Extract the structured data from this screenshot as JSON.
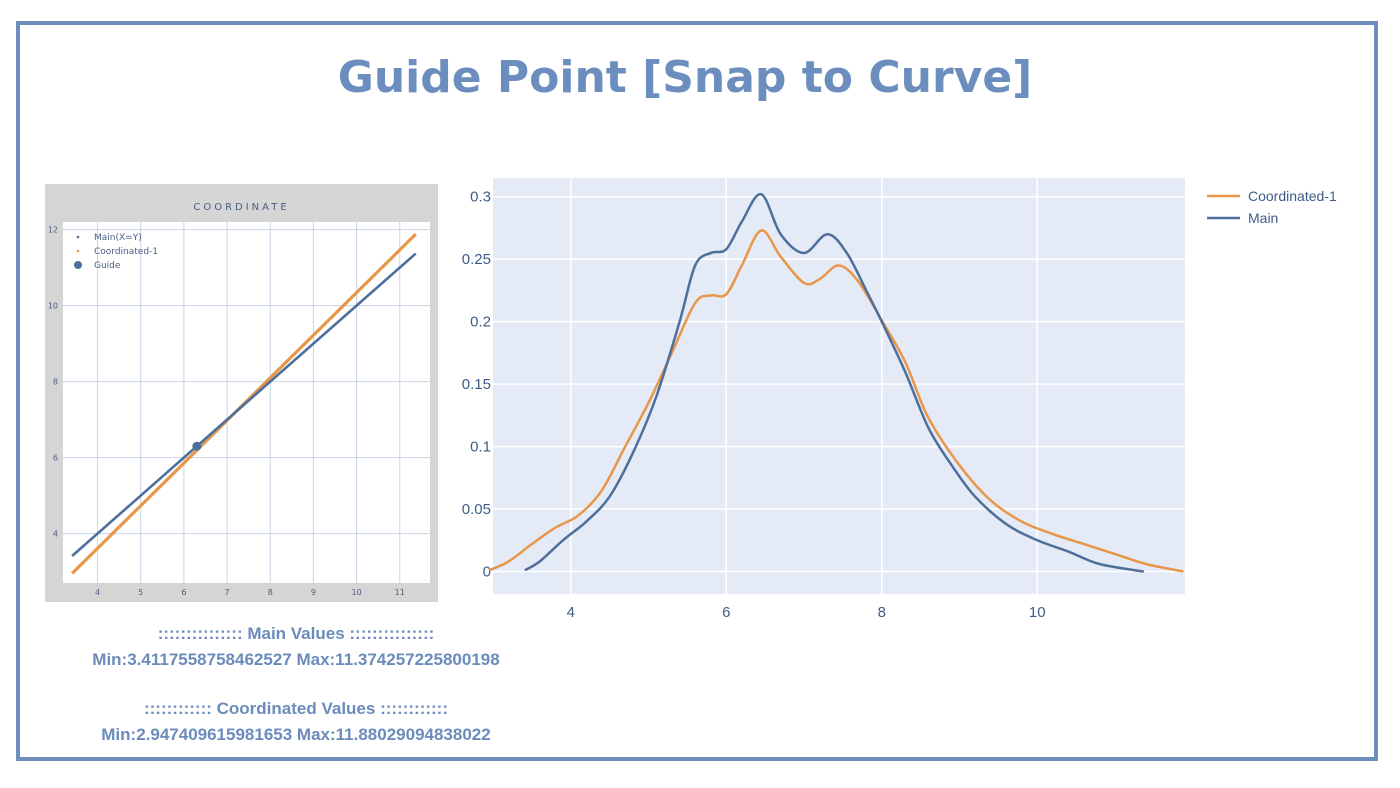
{
  "title": "Guide Point [Snap to Curve]",
  "colors": {
    "frame": "#6e8fbd",
    "title": "#6c8ebe",
    "main": "#4e6f9c",
    "coordinated": "#e8964a",
    "plot_bg": "#e5ebf6",
    "stats_text": "#6b8cbb"
  },
  "stats": {
    "main_header": "::::::::::::::: Main Values :::::::::::::::",
    "main_line": "Min:3.4117558758462527   Max:11.374257225800198",
    "coord_header": ":::::::::::: Coordinated Values ::::::::::::",
    "coord_line": "Min:2.947409615981653   Max:11.88029094838022"
  },
  "chart_data": [
    {
      "type": "line",
      "title": "COORDINATE",
      "xlim": [
        3.2,
        11.7
      ],
      "ylim": [
        2.7,
        12.2
      ],
      "x_ticks": [
        "4",
        "5",
        "6",
        "7",
        "8",
        "9",
        "10",
        "11"
      ],
      "y_ticks": [
        "4",
        "6",
        "8",
        "10",
        "12"
      ],
      "legend": "top-left",
      "grid": true,
      "series": [
        {
          "name": "Main(X=Y)",
          "x": [
            3.41,
            11.37
          ],
          "y": [
            3.41,
            11.37
          ]
        },
        {
          "name": "Coordinated-1",
          "x": [
            3.41,
            11.37
          ],
          "y": [
            2.95,
            11.88
          ]
        },
        {
          "name": "Guide",
          "x": [
            6.3
          ],
          "y": [
            6.3
          ]
        }
      ]
    },
    {
      "type": "line",
      "xlim": [
        3.0,
        11.9
      ],
      "ylim": [
        -0.018,
        0.315
      ],
      "x_ticks": [
        "4",
        "6",
        "8",
        "10"
      ],
      "y_ticks": [
        "0",
        "0.05",
        "0.1",
        "0.15",
        "0.2",
        "0.25",
        "0.3"
      ],
      "y_tick_values": [
        0,
        0.05,
        0.1,
        0.15,
        0.2,
        0.25,
        0.3
      ],
      "x_tick_values": [
        4,
        6,
        8,
        10
      ],
      "legend": "top-right",
      "grid": true,
      "series": [
        {
          "name": "Coordinated-1",
          "x": [
            2.95,
            3.2,
            3.5,
            3.8,
            4.1,
            4.4,
            4.7,
            5.0,
            5.3,
            5.6,
            5.8,
            6.0,
            6.2,
            6.45,
            6.7,
            7.0,
            7.2,
            7.45,
            7.7,
            8.0,
            8.3,
            8.6,
            9.0,
            9.4,
            9.8,
            10.2,
            10.6,
            11.0,
            11.4,
            11.88
          ],
          "y": [
            0.001,
            0.008,
            0.022,
            0.035,
            0.045,
            0.065,
            0.1,
            0.135,
            0.175,
            0.215,
            0.221,
            0.222,
            0.245,
            0.273,
            0.252,
            0.231,
            0.234,
            0.245,
            0.232,
            0.201,
            0.168,
            0.123,
            0.085,
            0.057,
            0.04,
            0.03,
            0.022,
            0.014,
            0.006,
            0.0
          ]
        },
        {
          "name": "Main",
          "x": [
            3.41,
            3.6,
            3.9,
            4.2,
            4.5,
            4.8,
            5.1,
            5.4,
            5.6,
            5.8,
            6.0,
            6.2,
            6.45,
            6.7,
            7.0,
            7.3,
            7.55,
            7.8,
            8.0,
            8.3,
            8.6,
            8.9,
            9.2,
            9.6,
            10.0,
            10.4,
            10.8,
            11.37
          ],
          "y": [
            0.001,
            0.008,
            0.025,
            0.04,
            0.06,
            0.095,
            0.14,
            0.2,
            0.245,
            0.255,
            0.258,
            0.28,
            0.302,
            0.27,
            0.255,
            0.27,
            0.255,
            0.225,
            0.2,
            0.16,
            0.115,
            0.085,
            0.06,
            0.038,
            0.025,
            0.016,
            0.006,
            0.0
          ]
        }
      ]
    }
  ]
}
